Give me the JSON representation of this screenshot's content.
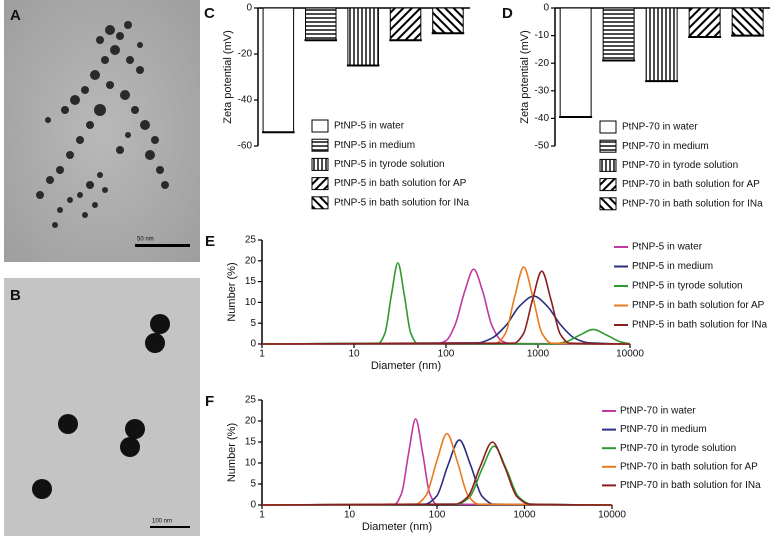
{
  "images": [
    {
      "label": "A",
      "scale_bar": "50 nm"
    },
    {
      "label": "B",
      "scale_bar": "100 nm"
    }
  ],
  "chart_data": [
    {
      "type": "bar",
      "panel_label": "C",
      "ylabel": "Zeta potential (mV)",
      "categories": [
        "PtNP-5 in water",
        "PtNP-5 in medium",
        "PtNP-5 in tyrode solution",
        "PtNP-5 in bath solution for AP",
        "PtNP-5 in bath solution for INa"
      ],
      "values": [
        -54,
        -14,
        -25,
        -14,
        -11
      ],
      "fills": [
        "none",
        "horizontal",
        "vertical",
        "diagonal",
        "back-diagonal"
      ],
      "color": "#000000",
      "ylim": [
        -60,
        0
      ],
      "yticks": [
        -60,
        -40,
        -20,
        0
      ]
    },
    {
      "type": "bar",
      "panel_label": "D",
      "ylabel": "Zeta potential (mV)",
      "categories": [
        "PtNP-70 in water",
        "PtNP-70 in medium",
        "PtNP-70 in tyrode solution",
        "PtNP-70 in bath solution for AP",
        "PtNP-70 in bath solution for INa"
      ],
      "values": [
        -39.5,
        -19,
        -26.5,
        -10.5,
        -10
      ],
      "fills": [
        "none",
        "horizontal",
        "vertical",
        "diagonal",
        "back-diagonal"
      ],
      "color": "#000000",
      "ylim": [
        -50,
        0
      ],
      "yticks": [
        -50,
        -40,
        -30,
        -20,
        -10,
        0
      ]
    },
    {
      "type": "line",
      "panel_label": "E",
      "xlabel": "Diameter (nm)",
      "ylabel": "Number (%)",
      "xlog": true,
      "xlim": [
        1,
        10000
      ],
      "xticks": [
        1,
        10,
        100,
        1000,
        10000
      ],
      "ylim": [
        0,
        25
      ],
      "yticks": [
        0,
        5,
        10,
        15,
        20,
        25
      ],
      "series": [
        {
          "name": "PtNP-5 in water",
          "color": "#c0399f",
          "x": [
            1,
            80,
            100,
            125,
            160,
            200,
            250,
            315,
            400,
            500,
            10000
          ],
          "values": [
            0,
            0.1,
            0.8,
            4.5,
            12.7,
            18,
            12.7,
            4.5,
            0.8,
            0.1,
            0
          ]
        },
        {
          "name": "PtNP-5 in medium",
          "color": "#2b2f7f",
          "x": [
            1,
            225,
            315,
            450,
            630,
            900,
            1260,
            1780,
            2500,
            3550,
            10000
          ],
          "values": [
            0,
            0.3,
            1.4,
            4.5,
            9.1,
            11.5,
            9.1,
            4.5,
            1.4,
            0.3,
            0
          ]
        },
        {
          "name": "PtNP-5 in tyrode solution",
          "color": "#2e9a2e",
          "x": [
            1,
            18.5,
            21.7,
            25.5,
            30,
            35.2,
            41.4,
            48.6,
            1410,
            2000,
            2820,
            3980,
            5620,
            7940,
            10000
          ],
          "values": [
            0,
            0.2,
            2.6,
            11.8,
            19.5,
            11.8,
            2.6,
            0.2,
            0,
            0.5,
            2.1,
            3.5,
            2.1,
            0.5,
            0.1
          ]
        },
        {
          "name": "PtNP-5 in bath solution for AP",
          "color": "#e87a20",
          "x": [
            1,
            351,
            442,
            556,
            700,
            881,
            1109,
            1396,
            10000
          ],
          "values": [
            0,
            0.2,
            2.5,
            11.2,
            18.5,
            11.2,
            2.5,
            0.2,
            0
          ]
        },
        {
          "name": "PtNP-5 in bath solution for INa",
          "color": "#8b1e1e",
          "x": [
            1,
            550,
            692,
            871,
            1100,
            1385,
            1744,
            2195,
            10000
          ],
          "values": [
            0,
            0.2,
            2.4,
            10.6,
            17.5,
            10.6,
            2.4,
            0.2,
            0
          ]
        }
      ]
    },
    {
      "type": "line",
      "panel_label": "F",
      "xlabel": "Diameter (nm)",
      "ylabel": "Number (%)",
      "xlog": true,
      "xlim": [
        1,
        10000
      ],
      "xticks": [
        1,
        10,
        100,
        1000,
        10000
      ],
      "ylim": [
        0,
        25
      ],
      "yticks": [
        0,
        5,
        10,
        15,
        20,
        25
      ],
      "series": [
        {
          "name": "PtNP-70 in water",
          "color": "#c0399f",
          "x": [
            1,
            32.8,
            39.4,
            47.4,
            57,
            68.5,
            82.4,
            99.1,
            10000
          ],
          "values": [
            0,
            0.2,
            2.8,
            12.4,
            20.5,
            12.4,
            2.8,
            0.2,
            0
          ]
        },
        {
          "name": "PtNP-70 in medium",
          "color": "#2b2f7f",
          "x": [
            1,
            73,
            99,
            133,
            180,
            243,
            327,
            442,
            10000
          ],
          "values": [
            0,
            0.2,
            2.1,
            9.4,
            15.5,
            9.4,
            2.1,
            0.2,
            0
          ]
        },
        {
          "name": "PtNP-70 in tyrode solution",
          "color": "#2e9a2e",
          "x": [
            1,
            171,
            236,
            326,
            450,
            621,
            857,
            1183,
            10000
          ],
          "values": [
            0,
            0.2,
            1.9,
            8.5,
            14,
            8.5,
            1.9,
            0.2,
            0
          ]
        },
        {
          "name": "PtNP-70 in bath solution for AP",
          "color": "#e87a20",
          "x": [
            1,
            57,
            75,
            99,
            130,
            171,
            226,
            298,
            10000
          ],
          "values": [
            0,
            0.2,
            2.3,
            10.3,
            17,
            10.3,
            2.3,
            0.2,
            0
          ]
        },
        {
          "name": "PtNP-70 in bath solution for INa",
          "color": "#8b1e1e",
          "x": [
            1,
            163,
            226,
            311,
            430,
            594,
            820,
            1133,
            10000
          ],
          "values": [
            0,
            0.2,
            2,
            9.1,
            15,
            9.1,
            2,
            0.2,
            0
          ]
        }
      ]
    }
  ]
}
